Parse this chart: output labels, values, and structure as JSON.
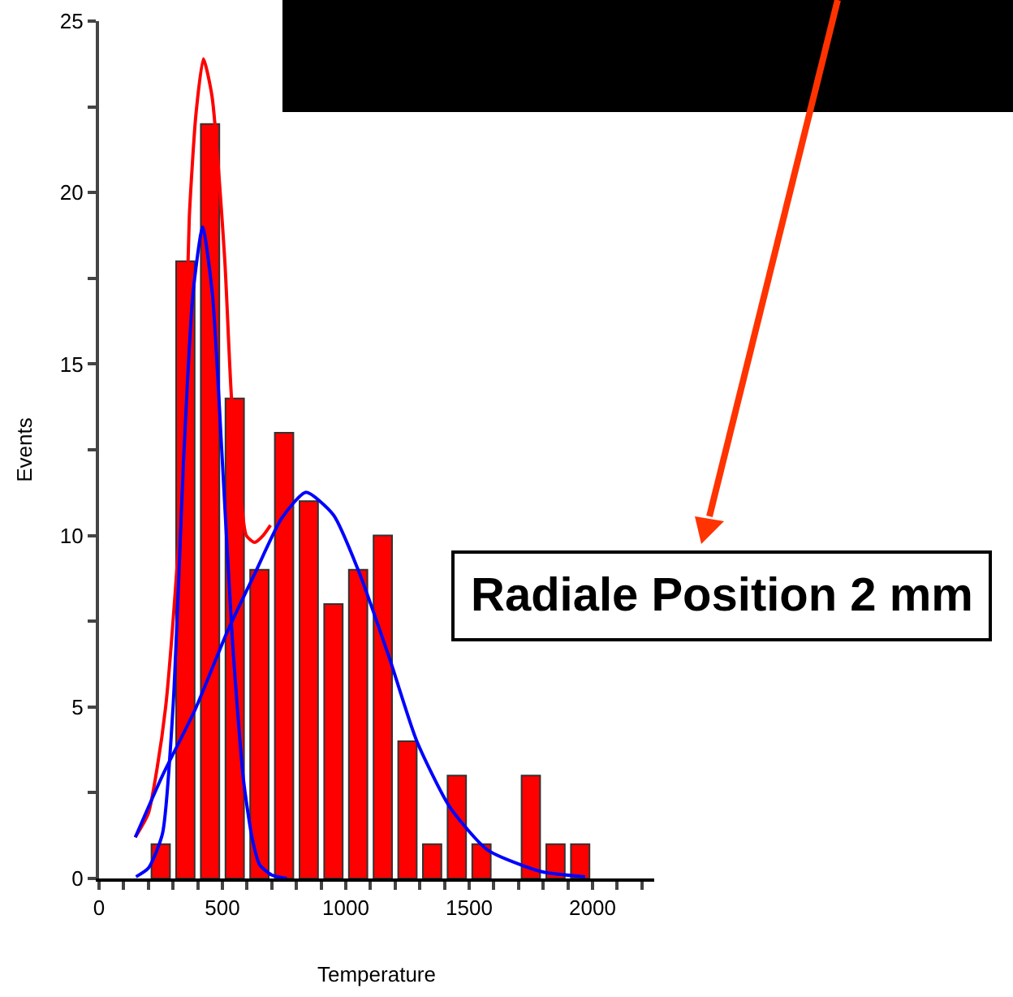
{
  "chart_data": {
    "type": "histogram",
    "xlabel": "Temperature",
    "ylabel": "Events",
    "annotations": [
      "Radiale Position 2 mm"
    ],
    "bins": [
      200,
      300,
      400,
      500,
      600,
      700,
      800,
      900,
      1000,
      1100,
      1200,
      1300,
      1400,
      1500,
      1600,
      1700,
      1800,
      1900,
      2000
    ],
    "series": [
      {
        "color": "#ff0000",
        "values": [
          1,
          18,
          22,
          14,
          9,
          13,
          11,
          8,
          9,
          10,
          4,
          1,
          3,
          1,
          0,
          3,
          1,
          1
        ]
      },
      {
        "type": "line",
        "color": "#ff0000",
        "x": [
          147,
          200,
          235,
          270,
          301,
          333,
          366,
          393,
          423,
          458,
          509,
          537,
          570,
          597,
          631,
          665,
          695
        ],
        "values": [
          1.2,
          1.9,
          3.2,
          5,
          7.6,
          11.1,
          19.3,
          22.3,
          23.9,
          22.8,
          18.1,
          14,
          11.5,
          10,
          9.8,
          10,
          10.3
        ]
      },
      {
        "type": "line",
        "color": "#0000ff",
        "x": [
          150,
          200,
          257,
          300,
          344,
          380,
          420,
          460,
          498,
          540,
          585,
          620,
          651,
          700,
          761
        ],
        "values": [
          0.05,
          0.3,
          1.3,
          5,
          12.4,
          17,
          19,
          17,
          12.4,
          7,
          2.9,
          1.2,
          0.4,
          0.1,
          0
        ]
      },
      {
        "type": "line",
        "color": "#0000ff",
        "x": [
          147,
          257,
          388,
          520,
          632,
          740,
          838,
          950,
          1050,
          1178,
          1288,
          1420,
          1573,
          1792,
          1970
        ],
        "values": [
          1.2,
          3,
          4.9,
          7.2,
          8.9,
          10.5,
          11.26,
          10.6,
          9,
          6.4,
          4,
          2.1,
          0.84,
          0.2,
          0.05
        ]
      }
    ],
    "xlim": [
      0,
      2250
    ],
    "xticks": [
      0,
      {
        "value": 100,
        "label": null
      },
      {
        "value": 200,
        "label": null
      },
      {
        "value": 300,
        "label": null
      },
      {
        "value": 400,
        "label": null
      },
      500,
      {
        "value": 600,
        "label": null
      },
      {
        "value": 700,
        "label": null
      },
      {
        "value": 800,
        "label": null
      },
      {
        "value": 900,
        "label": null
      },
      1000,
      {
        "value": 1100,
        "label": null
      },
      {
        "value": 1200,
        "label": null
      },
      {
        "value": 1300,
        "label": null
      },
      {
        "value": 1400,
        "label": null
      },
      1500,
      {
        "value": 1600,
        "label": null
      },
      {
        "value": 1700,
        "label": null
      },
      {
        "value": 1800,
        "label": null
      },
      {
        "value": 1900,
        "label": null
      },
      2000,
      {
        "value": 2100,
        "label": null
      },
      {
        "value": 2200,
        "label": null
      }
    ],
    "ylim": [
      0,
      25
    ],
    "yticks": [
      0,
      {
        "value": 2.5,
        "label": null
      },
      5,
      {
        "value": 7.5,
        "label": null
      },
      10,
      {
        "value": 12.5,
        "label": null
      },
      15,
      {
        "value": 17.5,
        "label": null
      },
      20,
      {
        "value": 22.5,
        "label": null
      },
      25
    ],
    "grid": false
  }
}
